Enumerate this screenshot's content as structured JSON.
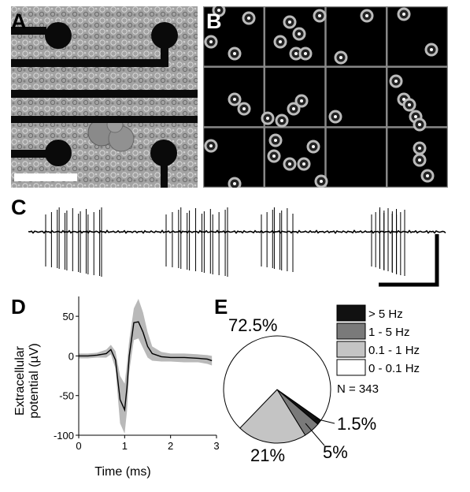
{
  "panels": {
    "A": {
      "letter": "A"
    },
    "B": {
      "letter": "B",
      "grid_rows": 3,
      "grid_cols": 4
    },
    "C": {
      "letter": "C"
    },
    "D": {
      "letter": "D"
    },
    "E": {
      "letter": "E"
    }
  },
  "chart_data": [
    {
      "type": "line",
      "panel": "D",
      "xlabel": "Time (ms)",
      "ylabel_line1": "Extracellular",
      "ylabel_line2": "potential (µV)",
      "xlim": [
        0,
        3
      ],
      "ylim": [
        -100,
        75
      ],
      "xticks": [
        "0",
        "1",
        "2",
        "3"
      ],
      "yticks": [
        "50",
        "0",
        "-50",
        "-100"
      ],
      "series": [
        {
          "x": [
            0.0,
            0.2,
            0.4,
            0.6,
            0.7,
            0.8,
            0.9,
            1.0,
            1.05,
            1.1,
            1.2,
            1.3,
            1.4,
            1.5,
            1.6,
            1.8,
            2.0,
            2.3,
            2.6,
            2.8,
            2.9
          ],
          "y": [
            0,
            0,
            1,
            3,
            8,
            -5,
            -55,
            -68,
            -40,
            0,
            42,
            43,
            30,
            12,
            3,
            -1,
            -2,
            -2,
            -3,
            -4,
            -6
          ]
        },
        {
          "x": [
            0.0,
            0.2,
            0.4,
            0.6,
            0.7,
            0.8,
            0.9,
            1.0,
            1.05,
            1.1,
            1.2,
            1.3,
            1.4,
            1.5,
            1.6,
            1.8,
            2.0,
            2.3,
            2.6,
            2.8,
            2.9
          ],
          "upper": [
            3,
            3,
            4,
            8,
            14,
            6,
            -25,
            -35,
            -10,
            20,
            60,
            72,
            55,
            30,
            12,
            5,
            3,
            3,
            2,
            1,
            0
          ],
          "lower": [
            -3,
            -3,
            -2,
            -2,
            2,
            -16,
            -85,
            -98,
            -70,
            -20,
            20,
            22,
            10,
            -2,
            -6,
            -7,
            -7,
            -8,
            -8,
            -10,
            -12
          ]
        }
      ]
    },
    {
      "type": "pie",
      "panel": "E",
      "slices": [
        {
          "label": "0 - 0.1 Hz",
          "value": 72.5,
          "pct_label": "72.5%",
          "color": "#ffffff"
        },
        {
          "label": "0.1 - 1 Hz",
          "value": 21,
          "pct_label": "21%",
          "color": "#c4c4c4"
        },
        {
          "label": "1 - 5 Hz",
          "value": 5,
          "pct_label": "5%",
          "color": "#7a7a7a"
        },
        {
          "label": "> 5 Hz",
          "value": 1.5,
          "pct_label": "1.5%",
          "color": "#111111"
        }
      ],
      "legend": [
        "> 5 Hz",
        "1 - 5 Hz",
        "0.1 - 1 Hz",
        "0 - 0.1 Hz"
      ],
      "n_label": "N = 343"
    }
  ]
}
